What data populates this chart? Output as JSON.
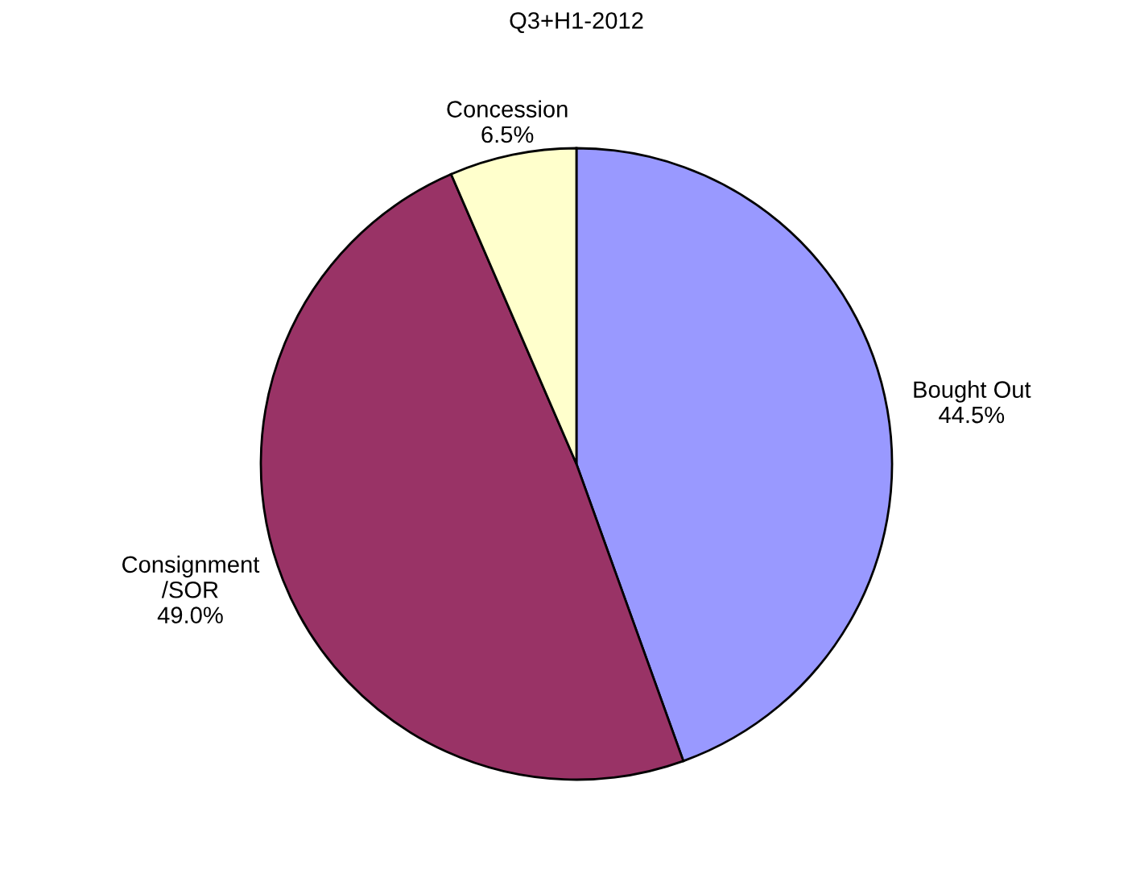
{
  "chart_data": {
    "type": "pie",
    "title": "Q3+H1-2012",
    "categories": [
      "Bought Out",
      "Consignment\n/SOR",
      "Concession"
    ],
    "values": [
      44.5,
      49.0,
      6.5
    ],
    "colors": [
      "#9999ff",
      "#993366",
      "#ffffcc"
    ],
    "value_labels": [
      "44.5%",
      "49.0%",
      "6.5%"
    ]
  }
}
